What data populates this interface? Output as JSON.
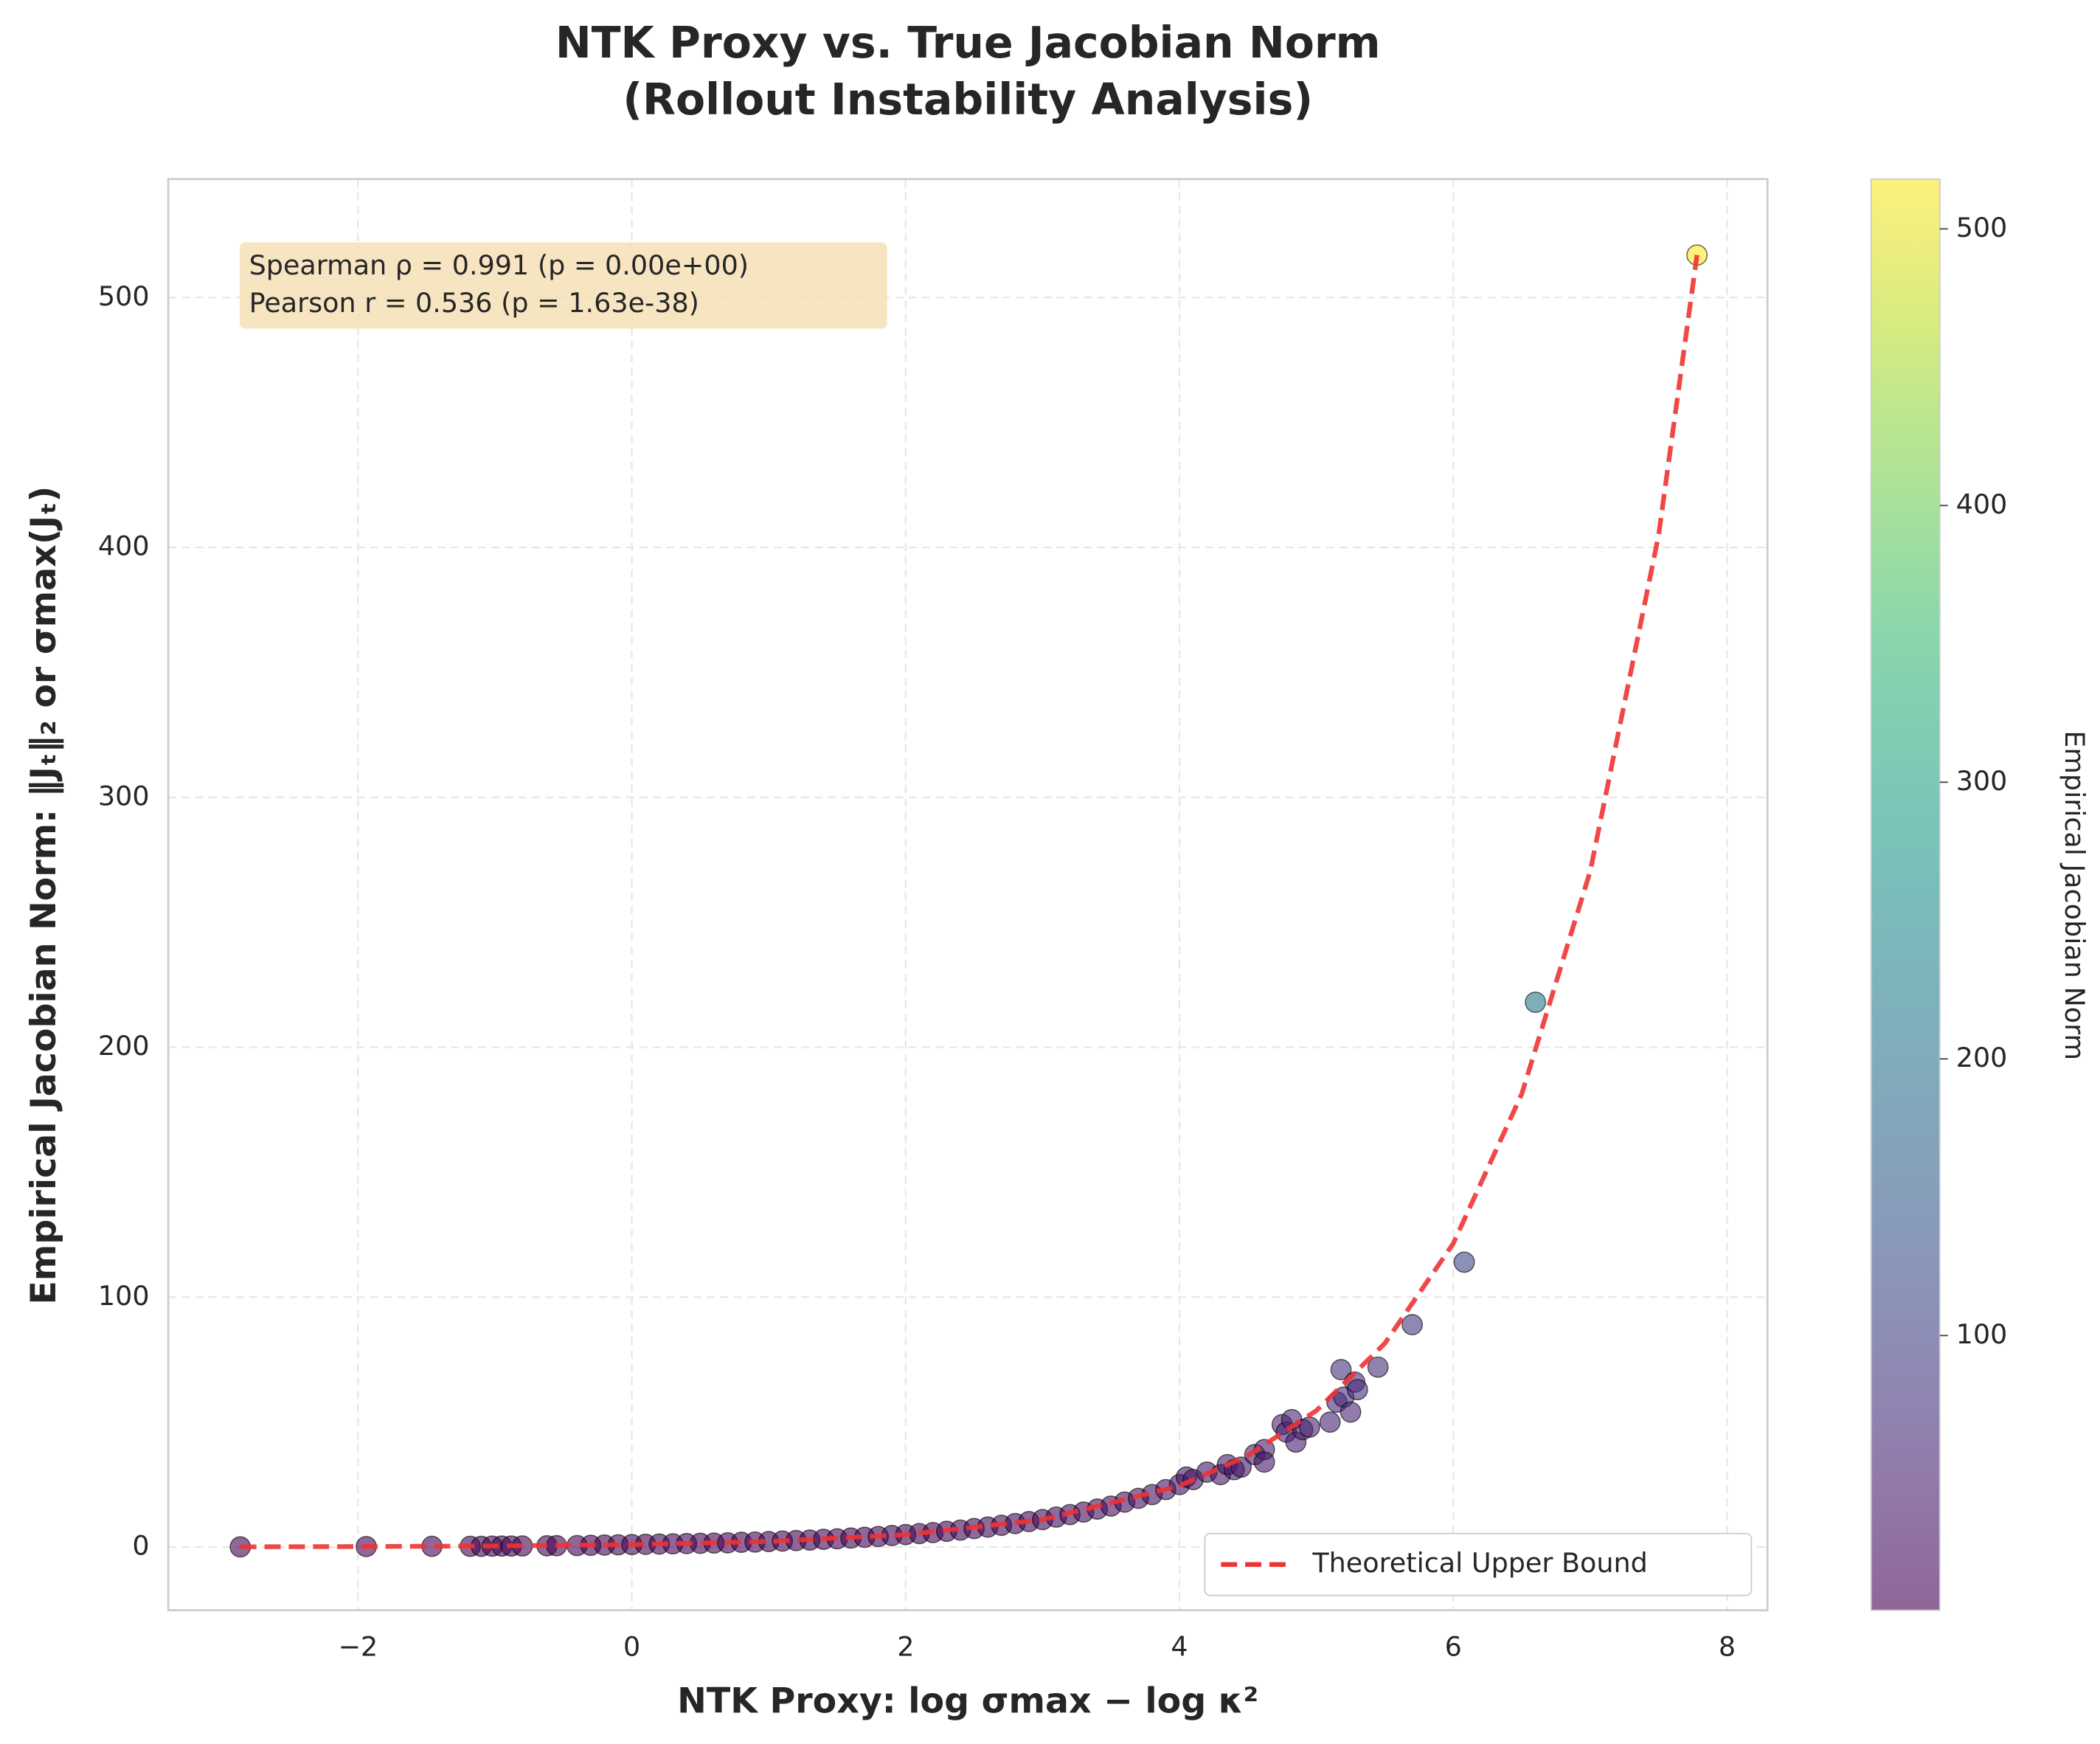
{
  "chart_data": {
    "type": "scatter",
    "title": [
      "NTK Proxy vs. True Jacobian Norm",
      "(Rollout Instability Analysis)"
    ],
    "xlabel": "NTK Proxy: log σmax − log κ²",
    "ylabel": "Empirical Jacobian Norm: ‖Jₜ‖₂ or σmax(Jₜ)",
    "annotation": [
      "Spearman ρ = 0.991 (p = 0.00e+00)",
      "Pearson r = 0.536 (p = 1.63e-38)"
    ],
    "xlim": [
      -3.386,
      8.295
    ],
    "ylim": [
      -25.3,
      547.4
    ],
    "xticks": [
      {
        "value": -2,
        "label": "−2"
      },
      0,
      2,
      4,
      6,
      8
    ],
    "yticks": [
      0,
      100,
      200,
      300,
      400,
      500
    ],
    "grid": true,
    "points": {
      "colormap": "viridis",
      "alpha": 0.6,
      "x": [
        -2.86,
        -1.94,
        -1.46,
        -1.18,
        -1.1,
        -1.02,
        -0.95,
        -0.88,
        -0.8,
        -0.62,
        -0.55,
        -0.4,
        -0.3,
        -0.2,
        -0.1,
        0,
        0.1,
        0.2,
        0.3,
        0.4,
        0.5,
        0.6,
        0.7,
        0.8,
        0.9,
        1.0,
        1.1,
        1.2,
        1.3,
        1.4,
        1.5,
        1.6,
        1.7,
        1.8,
        1.9,
        2.0,
        2.1,
        2.2,
        2.3,
        2.4,
        2.5,
        2.6,
        2.7,
        2.8,
        2.9,
        3.0,
        3.1,
        3.2,
        3.3,
        3.4,
        3.5,
        3.6,
        3.7,
        3.8,
        3.9,
        4.0,
        4.05,
        4.1,
        4.2,
        4.3,
        4.35,
        4.4,
        4.45,
        4.55,
        4.62,
        4.62,
        4.75,
        4.78,
        4.82,
        4.85,
        4.9,
        4.95,
        5.1,
        5.15,
        5.18,
        5.2,
        5.25,
        5.28,
        5.3,
        5.45,
        5.7,
        6.08,
        6.6,
        7.78
      ],
      "y": [
        0.06,
        0.2,
        0.3,
        0.3,
        0.3,
        0.35,
        0.4,
        0.4,
        0.45,
        0.5,
        0.55,
        0.6,
        0.7,
        0.8,
        0.9,
        1.0,
        1.1,
        1.2,
        1.3,
        1.4,
        1.5,
        1.6,
        1.7,
        1.9,
        2.0,
        2.2,
        2.4,
        2.6,
        2.8,
        3.1,
        3.3,
        3.6,
        3.9,
        4.2,
        4.6,
        5.0,
        5.4,
        5.8,
        6.3,
        6.8,
        7.4,
        8.0,
        8.7,
        9.4,
        10.2,
        11.0,
        12,
        13,
        14,
        15.2,
        16.4,
        18,
        19.5,
        21,
        23,
        25,
        28,
        27,
        30,
        29,
        33,
        31,
        32,
        37,
        39,
        34,
        49,
        46,
        51,
        42,
        47,
        48,
        50,
        58,
        71,
        60,
        54,
        66,
        63,
        72,
        89,
        114,
        218,
        517
      ]
    },
    "line": {
      "name": "Theoretical Upper Bound",
      "color": "#ee3333",
      "x": [
        -2.86,
        -2,
        -1,
        0,
        1,
        2,
        3,
        4,
        4.5,
        5,
        5.5,
        6,
        6.5,
        7,
        7.5,
        7.78
      ],
      "y": [
        0.1,
        0.2,
        0.45,
        1,
        2.23,
        4.95,
        11,
        24.5,
        36.6,
        54.6,
        81.5,
        121.5,
        181.3,
        270.4,
        405,
        517
      ]
    },
    "legend": "lower right",
    "colorbar": {
      "label": "Empirical Jacobian Norm",
      "clim": [
        0.7,
        518
      ],
      "ticks": [
        100,
        200,
        300,
        400,
        500
      ]
    }
  }
}
